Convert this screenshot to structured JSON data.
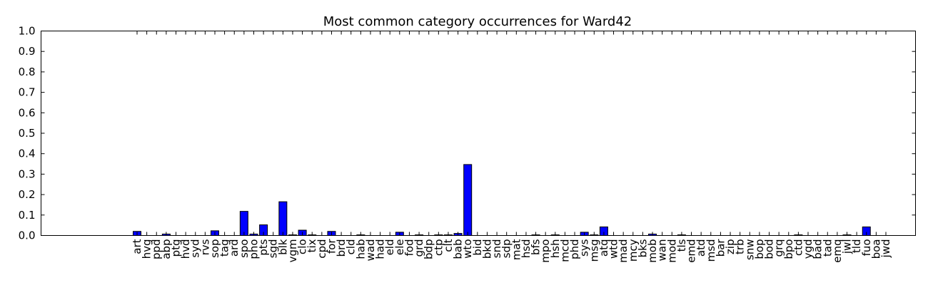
{
  "chart_data": {
    "type": "bar",
    "title": "Most common category occurrences for Ward42",
    "xlabel": "",
    "ylabel": "",
    "ylim": [
      0,
      1.0
    ],
    "yticks": [
      "0.0",
      "0.1",
      "0.2",
      "0.3",
      "0.4",
      "0.5",
      "0.6",
      "0.7",
      "0.8",
      "0.9",
      "1.0"
    ],
    "bar_color": "#0000ff",
    "grid": false,
    "legend": false,
    "categories": [
      "art",
      "hvg",
      "ppd",
      "abp",
      "ptg",
      "hvd",
      "syd",
      "rvs",
      "sop",
      "tag",
      "ard",
      "spo",
      "pho",
      "pts",
      "sgd",
      "blk",
      "vgm",
      "clo",
      "tix",
      "cpd",
      "for",
      "brd",
      "cld",
      "hab",
      "wad",
      "had",
      "eld",
      "ele",
      "fod",
      "grd",
      "bdp",
      "ctp",
      "clt",
      "bab",
      "wto",
      "bid",
      "bkd",
      "snd",
      "sdp",
      "mat",
      "hsd",
      "bfs",
      "mpo",
      "hsh",
      "mcd",
      "phd",
      "sys",
      "msg",
      "atq",
      "wtd",
      "mad",
      "mcy",
      "bks",
      "mob",
      "wan",
      "mod",
      "tls",
      "emd",
      "atd",
      "msd",
      "bar",
      "zip",
      "trb",
      "snw",
      "bop",
      "bod",
      "grq",
      "bpo",
      "ctd",
      "ygd",
      "bad",
      "tad",
      "emq",
      "jwl",
      "tld",
      "fuo",
      "boa",
      "jwd"
    ],
    "values": [
      0.02,
      0.0,
      0.0,
      0.007,
      0.0,
      0.0,
      0.0,
      0.0,
      0.023,
      0.0,
      0.0,
      0.118,
      0.007,
      0.052,
      0.0,
      0.165,
      0.003,
      0.026,
      0.003,
      0.0,
      0.02,
      0.0,
      0.0,
      0.003,
      0.0,
      0.0,
      0.0,
      0.016,
      0.0,
      0.003,
      0.0,
      0.003,
      0.003,
      0.01,
      0.347,
      0.0,
      0.0,
      0.0,
      0.0,
      0.0,
      0.0,
      0.003,
      0.0,
      0.003,
      0.0,
      0.0,
      0.016,
      0.003,
      0.042,
      0.0,
      0.0,
      0.0,
      0.0,
      0.007,
      0.0,
      0.0,
      0.003,
      0.0,
      0.0,
      0.0,
      0.0,
      0.0,
      0.0,
      0.0,
      0.0,
      0.0,
      0.0,
      0.0,
      0.003,
      0.0,
      0.0,
      0.0,
      0.0,
      0.003,
      0.0,
      0.042,
      0.0,
      0.0
    ]
  }
}
